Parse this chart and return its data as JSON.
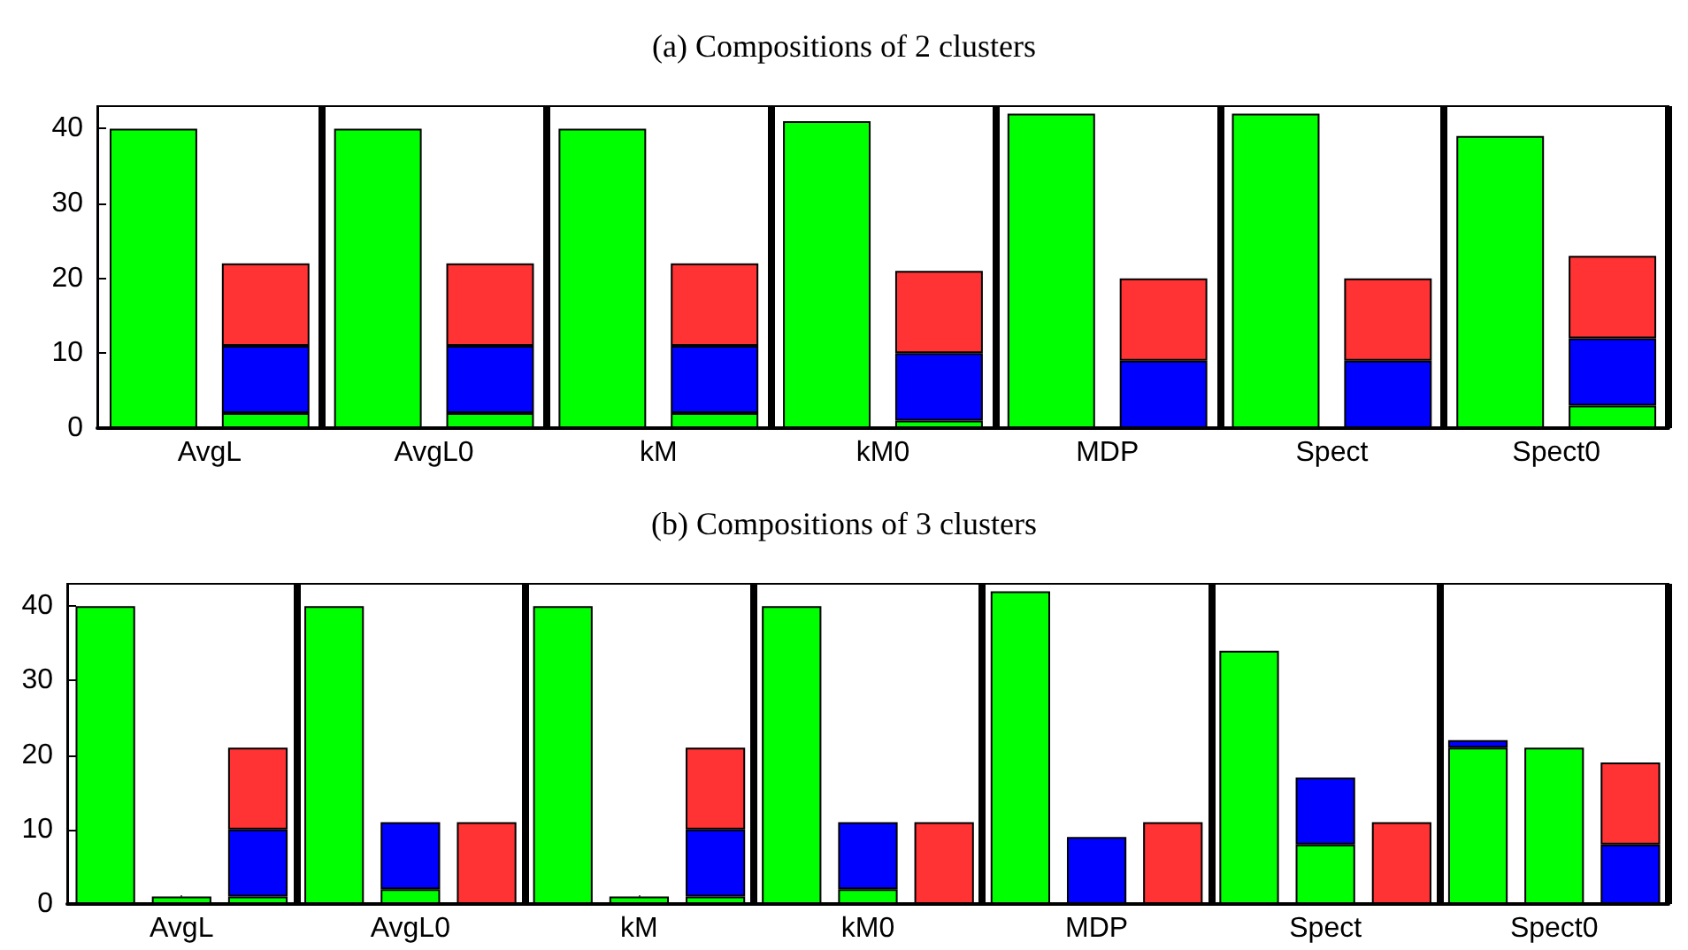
{
  "chart_data": [
    {
      "type": "bar",
      "title": "(a) Compositions of 2 clusters",
      "categories": [
        "AvgL",
        null,
        "AvgL0",
        null,
        "kM",
        null,
        "kM0",
        null,
        "MDP",
        null,
        "Spect",
        null,
        "Spect0",
        null
      ],
      "stacked": true,
      "ylim": [
        0,
        43
      ],
      "yticks": [
        0,
        10,
        20,
        30,
        40
      ],
      "grid": "x",
      "series": [
        {
          "color": "#00ff00",
          "values": [
            40,
            2,
            40,
            2,
            40,
            2,
            41,
            1,
            42,
            null,
            42,
            null,
            39,
            3
          ]
        },
        {
          "color": "#0000ff",
          "values": [
            null,
            9,
            null,
            9,
            null,
            9,
            null,
            9,
            null,
            9,
            null,
            9,
            null,
            9
          ]
        },
        {
          "color": "#ff3333",
          "values": [
            null,
            11,
            null,
            11,
            null,
            11,
            null,
            11,
            null,
            11,
            null,
            11,
            null,
            11
          ]
        }
      ]
    },
    {
      "type": "bar",
      "title": "(b) Compositions of 3 clusters",
      "categories": [
        null,
        "AvgL",
        null,
        null,
        "AvgL0",
        null,
        null,
        "kM",
        null,
        null,
        "kM0",
        null,
        null,
        "MDP",
        null,
        null,
        "Spect",
        null,
        null,
        "Spect0",
        null
      ],
      "stacked": true,
      "ylim": [
        0,
        43
      ],
      "yticks": [
        0,
        10,
        20,
        30,
        40
      ],
      "grid": "x",
      "series": [
        {
          "color": "#00ff00",
          "values": [
            40,
            1,
            1,
            40,
            2,
            null,
            40,
            1,
            1,
            40,
            2,
            null,
            42,
            null,
            null,
            34,
            8,
            null,
            21,
            21,
            null
          ]
        },
        {
          "color": "#0000ff",
          "values": [
            null,
            null,
            9,
            null,
            9,
            null,
            null,
            null,
            9,
            null,
            9,
            null,
            null,
            9,
            null,
            null,
            9,
            null,
            1,
            null,
            8
          ]
        },
        {
          "color": "#ff3333",
          "values": [
            null,
            null,
            11,
            null,
            null,
            11,
            null,
            null,
            11,
            null,
            null,
            11,
            null,
            null,
            11,
            null,
            null,
            11,
            null,
            null,
            11
          ]
        }
      ]
    }
  ]
}
